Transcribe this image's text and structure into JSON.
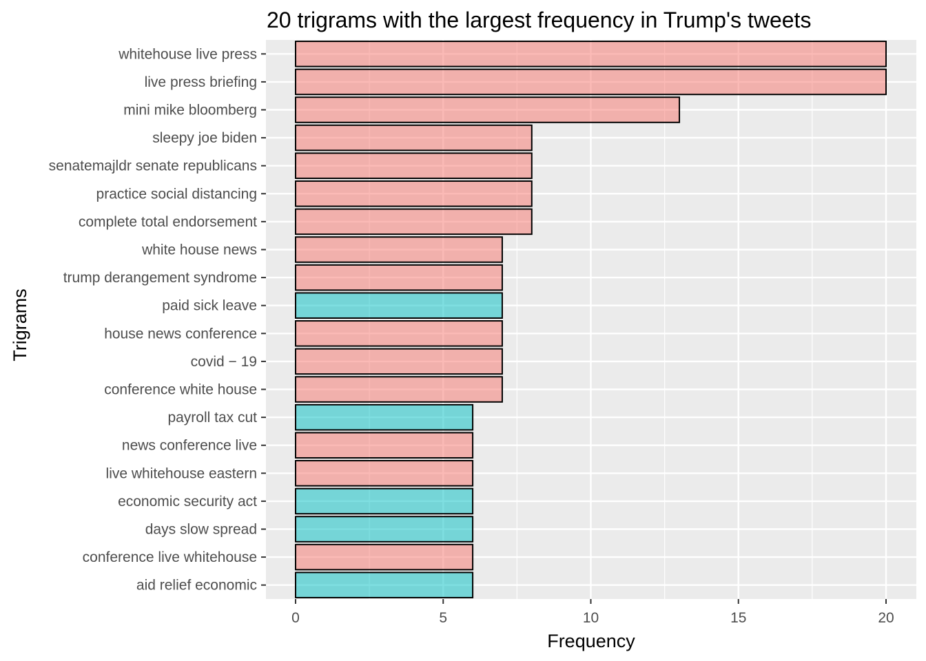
{
  "chart_data": {
    "type": "bar",
    "orientation": "horizontal",
    "title": "20 trigrams with the largest frequency in Trump's tweets",
    "xlabel": "Frequency",
    "ylabel": "Trigrams",
    "xlim": [
      0,
      21
    ],
    "x_ticks": [
      0,
      5,
      10,
      15,
      20
    ],
    "grid": true,
    "legend": "none",
    "colors": {
      "group_a": "#F8766D",
      "group_b": "#00BFC4",
      "panel": "#EBEBEB",
      "grid": "#FFFFFF",
      "bar_outline": "#000000"
    },
    "categories": [
      "whitehouse live press",
      "live press briefing",
      "mini mike bloomberg",
      "sleepy joe biden",
      "senatemajldr senate republicans",
      "practice social distancing",
      "complete total endorsement",
      "white house news",
      "trump derangement syndrome",
      "paid sick leave",
      "house news conference",
      "covid − 19",
      "conference white house",
      "payroll tax cut",
      "news conference live",
      "live whitehouse eastern",
      "economic security act",
      "days slow spread",
      "conference live whitehouse",
      "aid relief economic"
    ],
    "values": [
      20,
      20,
      13,
      8,
      8,
      8,
      8,
      7,
      7,
      7,
      7,
      7,
      7,
      6,
      6,
      6,
      6,
      6,
      6,
      6
    ],
    "fill_group": [
      "a",
      "a",
      "a",
      "a",
      "a",
      "a",
      "a",
      "a",
      "a",
      "b",
      "a",
      "a",
      "a",
      "b",
      "a",
      "a",
      "b",
      "b",
      "a",
      "b"
    ]
  }
}
